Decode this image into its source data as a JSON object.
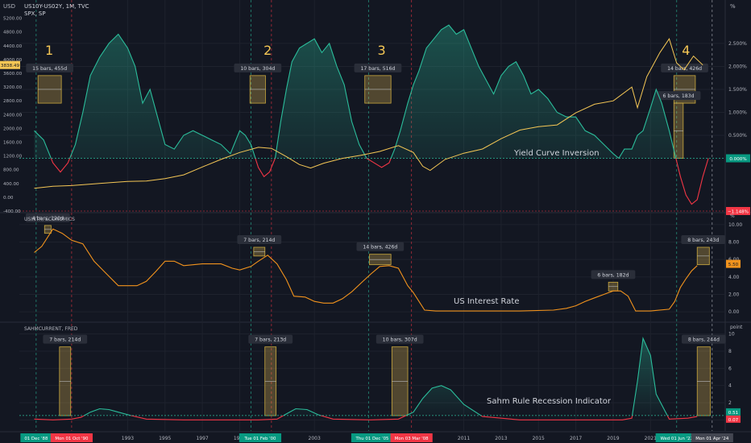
{
  "header": {
    "currency": "USD",
    "symbol": "US10Y-US02Y, 1M, TVC",
    "symbol2": "SPX, SP",
    "right_unit": "%"
  },
  "chart_data": [
    {
      "type": "line",
      "pane": "top",
      "series": [
        {
          "name": "US10Y-US02Y",
          "color": "#2bbd9b",
          "neg_color": "#f23645",
          "x": [
            1988.0,
            1988.5,
            1989.0,
            1989.4,
            1989.8,
            1990.2,
            1990.6,
            1991.0,
            1991.5,
            1992.0,
            1992.5,
            1993.0,
            1993.4,
            1993.8,
            1994.2,
            1994.6,
            1995.0,
            1995.5,
            1996.0,
            1996.5,
            1997.0,
            1997.5,
            1998.0,
            1998.5,
            1999.0,
            1999.3,
            1999.6,
            2000.0,
            2000.3,
            2000.6,
            2000.9,
            2001.2,
            2001.5,
            2001.8,
            2002.2,
            2002.6,
            2003.0,
            2003.4,
            2003.8,
            2004.2,
            2004.6,
            2005.0,
            2005.4,
            2005.8,
            2006.2,
            2006.6,
            2007.0,
            2007.3,
            2007.6,
            2008.0,
            2008.3,
            2008.6,
            2009.0,
            2009.4,
            2009.8,
            2010.2,
            2010.6,
            2011.0,
            2011.4,
            2011.8,
            2012.2,
            2012.6,
            2013.0,
            2013.4,
            2013.8,
            2014.2,
            2014.6,
            2015.0,
            2015.5,
            2016.0,
            2016.5,
            2017.0,
            2017.5,
            2018.0,
            2018.5,
            2019.0,
            2019.3,
            2019.6,
            2020.0,
            2020.3,
            2020.6,
            2021.0,
            2021.3,
            2021.6,
            2022.0,
            2022.3,
            2022.6,
            2022.9,
            2023.2,
            2023.5,
            2023.8,
            2024.1
          ],
          "y": [
            0.6,
            0.4,
            -0.1,
            -0.3,
            -0.1,
            0.3,
            1.0,
            1.8,
            2.2,
            2.5,
            2.7,
            2.4,
            2.0,
            1.2,
            1.5,
            0.9,
            0.3,
            0.2,
            0.5,
            0.6,
            0.5,
            0.4,
            0.3,
            0.1,
            0.6,
            0.5,
            0.3,
            -0.2,
            -0.4,
            -0.3,
            0.0,
            0.8,
            1.5,
            2.1,
            2.4,
            2.5,
            2.6,
            2.3,
            2.5,
            2.0,
            1.6,
            0.8,
            0.3,
            0.0,
            -0.1,
            -0.2,
            -0.1,
            0.2,
            0.6,
            1.2,
            1.6,
            1.9,
            2.4,
            2.6,
            2.8,
            2.9,
            2.7,
            2.8,
            2.4,
            2.0,
            1.7,
            1.4,
            1.8,
            2.0,
            2.1,
            1.8,
            1.4,
            1.5,
            1.3,
            1.0,
            0.9,
            0.9,
            0.6,
            0.5,
            0.3,
            0.1,
            0.0,
            0.2,
            0.2,
            0.5,
            0.6,
            1.1,
            1.5,
            1.2,
            0.6,
            0.1,
            -0.4,
            -0.8,
            -1.0,
            -0.9,
            -0.4,
            0.0
          ]
        },
        {
          "name": "SPX",
          "color": "#f5c755",
          "x": [
            1988.0,
            1989.0,
            1990.0,
            1991.0,
            1992.0,
            1993.0,
            1994.0,
            1995.0,
            1996.0,
            1997.0,
            1998.0,
            1999.0,
            2000.0,
            2000.7,
            2001.5,
            2002.2,
            2002.8,
            2003.5,
            2004.5,
            2005.5,
            2006.5,
            2007.5,
            2008.3,
            2008.8,
            2009.2,
            2010.0,
            2011.0,
            2012.0,
            2013.0,
            2014.0,
            2015.0,
            2016.0,
            2017.0,
            2018.0,
            2019.0,
            2020.0,
            2020.3,
            2020.8,
            2021.5,
            2022.0,
            2022.4,
            2022.8,
            2023.3,
            2023.8
          ],
          "y": [
            260,
            320,
            340,
            380,
            420,
            460,
            470,
            540,
            650,
            880,
            1100,
            1300,
            1450,
            1420,
            1180,
            950,
            850,
            990,
            1130,
            1220,
            1330,
            1500,
            1300,
            900,
            780,
            1100,
            1280,
            1400,
            1700,
            1950,
            2050,
            2100,
            2450,
            2700,
            2800,
            3200,
            2600,
            3500,
            4200,
            4600,
            3900,
            3700,
            4100,
            3840
          ]
        }
      ],
      "left_axis_ticks": [
        "5200.00",
        "4800.00",
        "4400.00",
        "4000.00",
        "3600.00",
        "3200.00",
        "2800.00",
        "2400.00",
        "2000.00",
        "1600.00",
        "1200.00",
        "800.00",
        "400.00",
        "0.00",
        "-400.00"
      ],
      "ylim_left": [
        -400,
        5400
      ],
      "right_axis_ticks": [
        "2.500%",
        "2.000%",
        "1.500%",
        "1.000%",
        "0.500%"
      ],
      "ylim_right": [
        -1.148,
        3.2
      ],
      "current_left": "3838.49",
      "current_right_zero": "0.000%",
      "current_right_neg": "−1.148%",
      "label": "Yield Curve Inversion",
      "cycle_numbers": [
        {
          "n": "1",
          "x": 1988.8
        },
        {
          "n": "2",
          "x": 2000.5
        },
        {
          "n": "3",
          "x": 2006.6
        },
        {
          "n": "4",
          "x": 2022.9
        }
      ],
      "boxes": [
        {
          "label": "15 bars, 455d",
          "x0": 1988.2,
          "x1": 1989.45,
          "y0": 1.2,
          "y1": 1.8
        },
        {
          "label": "10 bars, 304d",
          "x0": 1999.55,
          "x1": 2000.38,
          "y0": 1.2,
          "y1": 1.8
        },
        {
          "label": "17 bars, 516d",
          "x0": 2005.7,
          "x1": 2007.1,
          "y0": 1.2,
          "y1": 1.8
        },
        {
          "label": "14 bars, 426d",
          "x0": 2022.25,
          "x1": 2023.4,
          "y0": 1.2,
          "y1": 1.8
        },
        {
          "label": "6 bars, 183d",
          "x0": 2022.25,
          "x1": 2022.75,
          "y0": 0.0,
          "y1": 1.2
        }
      ]
    },
    {
      "type": "line",
      "pane": "middle",
      "series": [
        {
          "name": "USINTR, ECONOMICS",
          "color": "#f2931d",
          "x": [
            1988.0,
            1988.4,
            1989.0,
            1989.5,
            1990.0,
            1990.6,
            1991.2,
            1991.8,
            1992.5,
            1993.0,
            1993.5,
            1994.0,
            1994.5,
            1995.0,
            1995.5,
            1996.0,
            1997.0,
            1998.0,
            1998.6,
            1999.0,
            1999.6,
            2000.0,
            2000.5,
            2001.0,
            2001.5,
            2001.9,
            2002.5,
            2003.0,
            2003.5,
            2004.0,
            2004.5,
            2005.0,
            2005.5,
            2006.0,
            2006.5,
            2007.0,
            2007.5,
            2008.0,
            2008.3,
            2008.9,
            2009.5,
            2012.0,
            2014.0,
            2015.8,
            2016.5,
            2017.0,
            2017.5,
            2018.0,
            2018.5,
            2019.0,
            2019.4,
            2019.8,
            2020.2,
            2021.0,
            2022.0,
            2022.3,
            2022.6,
            2022.9,
            2023.2,
            2023.5
          ],
          "y": [
            6.8,
            7.5,
            9.5,
            9.0,
            8.2,
            7.8,
            5.8,
            4.5,
            3.0,
            3.0,
            3.0,
            3.5,
            4.6,
            5.8,
            5.8,
            5.3,
            5.5,
            5.5,
            5.0,
            4.8,
            5.2,
            5.8,
            6.5,
            5.5,
            3.7,
            1.8,
            1.7,
            1.2,
            1.0,
            1.0,
            1.5,
            2.3,
            3.3,
            4.3,
            5.2,
            5.3,
            5.0,
            3.0,
            2.2,
            0.2,
            0.1,
            0.1,
            0.1,
            0.2,
            0.4,
            0.7,
            1.2,
            1.6,
            2.0,
            2.4,
            2.4,
            1.8,
            0.1,
            0.1,
            0.3,
            1.2,
            2.8,
            3.8,
            4.7,
            5.3
          ]
        }
      ],
      "right_axis_ticks": [
        "10.00",
        "8.00",
        "6.00",
        "4.00",
        "2.00",
        "0.00"
      ],
      "ylim": [
        -1,
        11
      ],
      "current_value": "5.50",
      "label": "US Interest Rate",
      "boxes": [
        {
          "label": "4 bars, 120d",
          "x0": 1988.55,
          "x1": 1988.9,
          "y0": 9.0,
          "y1": 9.9
        },
        {
          "label": "7 bars, 214d",
          "x0": 1999.75,
          "x1": 2000.35,
          "y0": 6.4,
          "y1": 7.4
        },
        {
          "label": "14 bars, 426d",
          "x0": 2005.95,
          "x1": 2007.1,
          "y0": 5.4,
          "y1": 6.6
        },
        {
          "label": "6 bars, 182d",
          "x0": 2018.75,
          "x1": 2019.25,
          "y0": 2.4,
          "y1": 3.4
        },
        {
          "label": "8 bars, 243d",
          "x0": 2023.5,
          "x1": 2024.15,
          "y0": 5.4,
          "y1": 7.4
        }
      ]
    },
    {
      "type": "line",
      "pane": "bottom",
      "series": [
        {
          "name": "SAHMCURRENT, FRED",
          "color": "#2bbd9b",
          "neg_color": "#f23645",
          "baseline": 0.51,
          "x": [
            1988.0,
            1989.0,
            1990.0,
            1990.5,
            1991.0,
            1991.5,
            1992.0,
            1992.5,
            1993.2,
            1994.0,
            1996.0,
            1998.0,
            2000.0,
            2001.0,
            2001.5,
            2002.0,
            2002.6,
            2003.2,
            2004.0,
            2006.0,
            2007.5,
            2008.3,
            2008.8,
            2009.3,
            2009.8,
            2010.3,
            2011.0,
            2012.0,
            2014.0,
            2016.0,
            2018.0,
            2019.5,
            2020.0,
            2020.3,
            2020.6,
            2021.0,
            2021.3,
            2022.0,
            2023.0,
            2023.5
          ],
          "y": [
            0.1,
            0.0,
            0.1,
            0.3,
            0.9,
            1.3,
            1.2,
            0.9,
            0.5,
            0.1,
            0.0,
            0.0,
            0.0,
            0.1,
            0.7,
            1.3,
            1.2,
            0.6,
            0.1,
            0.0,
            0.1,
            0.9,
            2.5,
            3.7,
            4.0,
            3.5,
            1.8,
            0.4,
            0.0,
            0.0,
            0.0,
            0.0,
            0.2,
            4.5,
            9.5,
            7.5,
            3.0,
            0.1,
            0.2,
            0.4
          ]
        }
      ],
      "right_axis_title": "point",
      "right_axis_ticks": [
        "10",
        "8",
        "6",
        "4",
        "2",
        "0"
      ],
      "ylim": [
        -1,
        11
      ],
      "current_value": "0.51",
      "current_value_2": "0.07",
      "label": "Sahm Rule Recession Indicator",
      "boxes": [
        {
          "label": "7 bars, 214d",
          "x0": 1989.35,
          "x1": 1989.95,
          "y0": 0.5,
          "y1": 8.5
        },
        {
          "label": "7 bars, 213d",
          "x0": 2000.35,
          "x1": 2000.95,
          "y0": 0.5,
          "y1": 8.5
        },
        {
          "label": "10 bars, 307d",
          "x0": 2007.15,
          "x1": 2008.0,
          "y0": 0.5,
          "y1": 8.5
        },
        {
          "label": "8 bars, 244d",
          "x0": 2023.5,
          "x1": 2024.2,
          "y0": 0.5,
          "y1": 8.5
        }
      ]
    }
  ],
  "x_axis": {
    "xlim": [
      1987.2,
      2025.0
    ],
    "ticks": [
      {
        "label": "1993",
        "x": 1993.0
      },
      {
        "label": "1995",
        "x": 1995.0
      },
      {
        "label": "1997",
        "x": 1997.0
      },
      {
        "label": "1999",
        "x": 1999.0
      },
      {
        "label": "2003",
        "x": 2003.0
      },
      {
        "label": "2011",
        "x": 2011.0
      },
      {
        "label": "2013",
        "x": 2013.0
      },
      {
        "label": "2015",
        "x": 2015.0
      },
      {
        "label": "2017",
        "x": 2017.0
      },
      {
        "label": "2019",
        "x": 2019.0
      },
      {
        "label": "2021",
        "x": 2021.0
      }
    ],
    "date_flags": [
      {
        "label": "01 Dec '88",
        "x": 1988.1,
        "color": "#089981"
      },
      {
        "label": "Mon 01 Oct '90",
        "x": 1990.0,
        "color": "#f23645"
      },
      {
        "label": "Tue 01 Feb '00",
        "x": 2000.1,
        "color": "#089981"
      },
      {
        "label": "Thu 01 Dec '05",
        "x": 2006.1,
        "color": "#089981"
      },
      {
        "label": "Mon 03 Mar '08",
        "x": 2008.2,
        "color": "#f23645"
      },
      {
        "label": "Wed 01 Jun '22",
        "x": 2022.4,
        "color": "#089981"
      },
      {
        "label": "Mon 01 Apr '24",
        "x": 2024.3,
        "color": "#434651"
      }
    ],
    "vlines_green": [
      1988.1,
      1999.6,
      2005.9,
      2022.4
    ],
    "vlines_red": [
      1990.0,
      2000.7,
      2008.2
    ],
    "vline_white": 2024.3
  }
}
